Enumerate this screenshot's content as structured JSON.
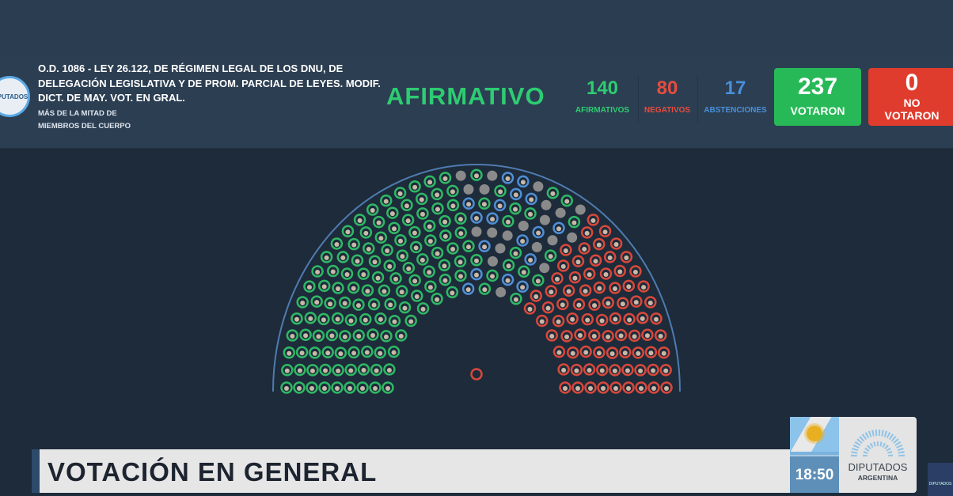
{
  "header": {
    "logo_text": "DIPUTADOS",
    "title": "O.D. 1086 - LEY 26.122, DE RÉGIMEN LEGAL DE LOS DNU, DE DELEGACIÓN LEGISLATIVA Y DE PROM. PARCIAL DE LEYES. MODIF. DICT. DE MAY. VOT. EN GRAL.",
    "majority_line1": "MÁS DE LA MITAD DE",
    "majority_line2": "MIEMBROS DEL CUERPO",
    "result": "AFIRMATIVO"
  },
  "stats": {
    "afirmativos": {
      "value": "140",
      "label": "AFIRMATIVOS",
      "color": "#2ecc71"
    },
    "negativos": {
      "value": "80",
      "label": "NEGATIVOS",
      "color": "#e74c3c"
    },
    "abstenciones": {
      "value": "17",
      "label": "ABSTENCIONES",
      "color": "#4a90d9"
    },
    "votaron": {
      "value": "237",
      "label": "VOTARON",
      "color": "#27b957"
    },
    "no_votaron": {
      "value": "0",
      "label1": "NO",
      "label2": "VOTARON",
      "color": "#e03c2e"
    }
  },
  "hemicycle": {
    "seat_counts": {
      "afirmativo": 140,
      "negativo": 80,
      "abstencion": 17,
      "ausente": 20
    },
    "colors": {
      "afirmativo": "#2fb865",
      "negativo": "#d9483b",
      "abstencion": "#4f8fd6",
      "ausente": "#8a8a8a",
      "presidente": "#d9483b"
    }
  },
  "banner": {
    "label": "VOTACIÓN EN GENERAL"
  },
  "footer": {
    "time": "18:50",
    "brand_line1": "DIPUTADOS",
    "brand_line2": "ARGENTINA",
    "mini_logo": "DIPUTADOS"
  }
}
